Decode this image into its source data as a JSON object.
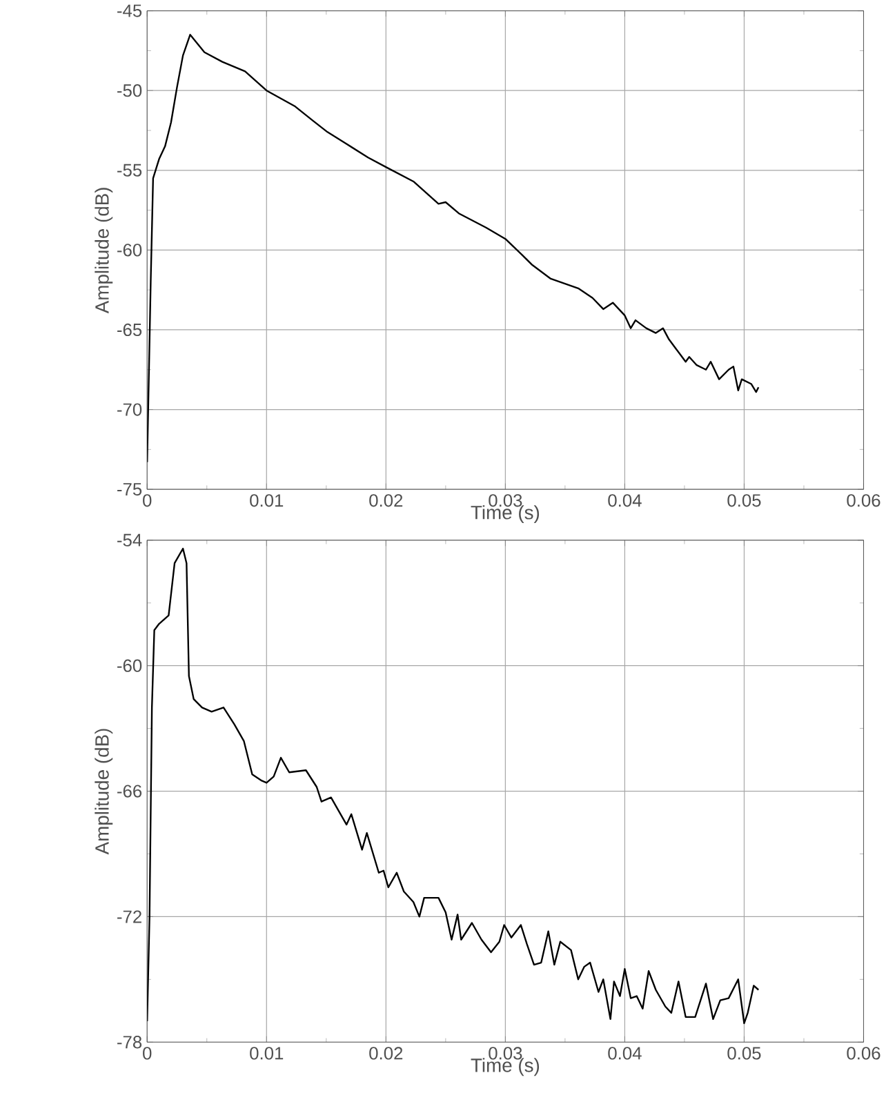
{
  "chart_data": [
    {
      "type": "line",
      "xlabel": "Time (s)",
      "ylabel": "Amplitude (dB)",
      "color": "#000000",
      "grid": true,
      "xlim": [
        0,
        0.06
      ],
      "ylim": [
        -75,
        -45
      ],
      "xticks": [
        0,
        0.01,
        0.02,
        0.03,
        0.04,
        0.05,
        0.06
      ],
      "yticks": [
        -75,
        -70,
        -65,
        -60,
        -55,
        -50,
        -45
      ],
      "x": [
        0,
        0.0003,
        0.0005,
        0.001,
        0.0015,
        0.002,
        0.0025,
        0.003,
        0.0036,
        0.0048,
        0.0063,
        0.0082,
        0.01,
        0.0124,
        0.0139,
        0.0151,
        0.0166,
        0.0185,
        0.02,
        0.0223,
        0.0244,
        0.025,
        0.0261,
        0.0284,
        0.03,
        0.0314,
        0.0322,
        0.0338,
        0.0361,
        0.0373,
        0.0382,
        0.039,
        0.04,
        0.0405,
        0.0409,
        0.0418,
        0.0426,
        0.0432,
        0.0437,
        0.0443,
        0.0451,
        0.0454,
        0.046,
        0.0468,
        0.0472,
        0.0479,
        0.0487,
        0.0491,
        0.0495,
        0.0498,
        0.0506,
        0.051,
        0.0512
      ],
      "values": [
        -73.3,
        -62,
        -55.5,
        -54.3,
        -53.5,
        -52,
        -49.8,
        -47.8,
        -46.5,
        -47.6,
        -48.2,
        -48.8,
        -50,
        -51.0,
        -51.9,
        -52.6,
        -53.3,
        -54.2,
        -54.8,
        -55.7,
        -57.1,
        -57.0,
        -57.7,
        -58.6,
        -59.3,
        -60.3,
        -60.9,
        -61.8,
        -62.4,
        -63.0,
        -63.7,
        -63.3,
        -64.1,
        -64.9,
        -64.4,
        -64.9,
        -65.2,
        -64.9,
        -65.6,
        -66.2,
        -67.0,
        -66.7,
        -67.2,
        -67.5,
        -67.0,
        -68.1,
        -67.5,
        -67.3,
        -68.8,
        -68.1,
        -68.4,
        -68.9,
        -68.6
      ]
    },
    {
      "type": "line",
      "xlabel": "Time (s)",
      "ylabel": "Amplitude (dB)",
      "color": "#000000",
      "grid": true,
      "xlim": [
        0,
        0.06
      ],
      "ylim": [
        -78,
        -54
      ],
      "xticks": [
        0,
        0.01,
        0.02,
        0.03,
        0.04,
        0.05,
        0.06
      ],
      "yticks": [
        -78,
        -72,
        -66,
        -60,
        -54
      ],
      "x": [
        0,
        0.0002,
        0.0004,
        0.0006,
        0.001,
        0.0018,
        0.0023,
        0.003,
        0.0033,
        0.0035,
        0.0039,
        0.0046,
        0.0054,
        0.0064,
        0.0073,
        0.0081,
        0.0088,
        0.0096,
        0.01,
        0.0106,
        0.0112,
        0.0119,
        0.0133,
        0.0142,
        0.0146,
        0.0154,
        0.0159,
        0.0167,
        0.0171,
        0.018,
        0.0184,
        0.0194,
        0.0198,
        0.0202,
        0.0209,
        0.0215,
        0.0223,
        0.0228,
        0.0232,
        0.0244,
        0.025,
        0.0255,
        0.026,
        0.0263,
        0.0272,
        0.028,
        0.0288,
        0.0295,
        0.0299,
        0.0305,
        0.0313,
        0.0318,
        0.0324,
        0.033,
        0.0336,
        0.0341,
        0.0346,
        0.0355,
        0.0361,
        0.0366,
        0.0371,
        0.0378,
        0.0382,
        0.0388,
        0.0391,
        0.0396,
        0.04,
        0.0405,
        0.041,
        0.0415,
        0.042,
        0.0426,
        0.0434,
        0.0439,
        0.0445,
        0.0451,
        0.0459,
        0.0468,
        0.0474,
        0.048,
        0.0487,
        0.0495,
        0.05,
        0.0503,
        0.0508,
        0.0512
      ],
      "values": [
        -77,
        -72,
        -62,
        -58.3,
        -58,
        -57.6,
        -55.1,
        -54.4,
        -55.1,
        -60.5,
        -61.6,
        -62.0,
        -62.2,
        -62.0,
        -62.8,
        -63.6,
        -65.2,
        -65.5,
        -65.6,
        -65.3,
        -64.4,
        -65.1,
        -65.0,
        -65.8,
        -66.5,
        -66.3,
        -66.8,
        -67.6,
        -67.1,
        -68.8,
        -68.0,
        -69.9,
        -69.8,
        -70.6,
        -69.9,
        -70.8,
        -71.3,
        -72.0,
        -71.1,
        -71.1,
        -71.8,
        -73.1,
        -71.9,
        -73.1,
        -72.3,
        -73.1,
        -73.7,
        -73.2,
        -72.4,
        -73.0,
        -72.4,
        -73.3,
        -74.3,
        -74.2,
        -72.7,
        -74.3,
        -73.2,
        -73.6,
        -75.0,
        -74.4,
        -74.2,
        -75.6,
        -75.0,
        -76.9,
        -75.1,
        -75.8,
        -74.5,
        -75.9,
        -75.8,
        -76.4,
        -74.6,
        -75.5,
        -76.3,
        -76.6,
        -75.1,
        -76.8,
        -76.8,
        -75.2,
        -76.9,
        -76.0,
        -75.9,
        -75.0,
        -77.1,
        -76.6,
        -75.3,
        -75.5
      ]
    }
  ]
}
